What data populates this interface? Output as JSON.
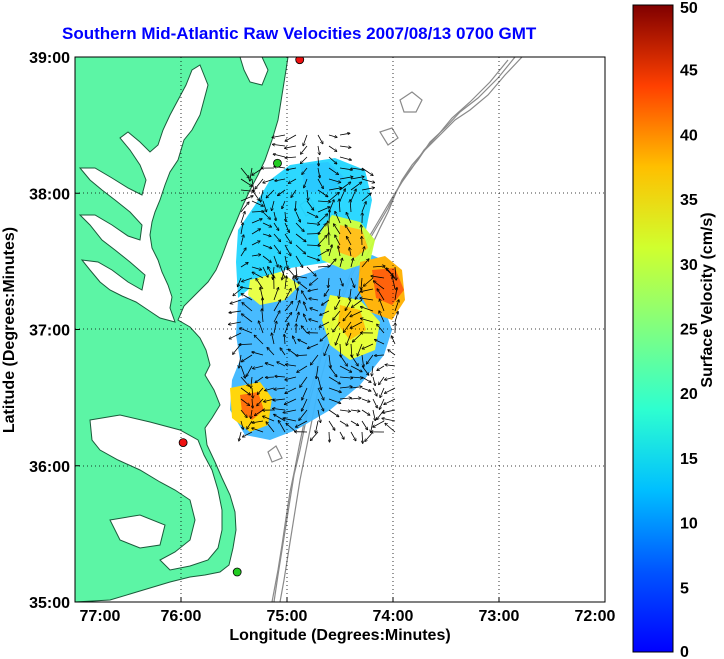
{
  "title": "Southern Mid-Atlantic Raw Velocities 2007/08/13 0700 GMT",
  "x_axis": {
    "label": "Longitude (Degrees:Minutes)",
    "ticks": [
      "77:00",
      "76:00",
      "75:00",
      "74:00",
      "73:00",
      "72:00"
    ]
  },
  "y_axis": {
    "label": "Latitude (Degrees:Minutes)",
    "ticks": [
      "39:00",
      "38:00",
      "37:00",
      "36:00",
      "35:00"
    ]
  },
  "colorbar": {
    "label": "Surface Velocity (cm/s)",
    "ticks": [
      "50",
      "45",
      "40",
      "35",
      "30",
      "25",
      "20",
      "15",
      "10",
      "5",
      "0"
    ],
    "range": [
      0,
      50
    ],
    "colormap": "jet"
  },
  "colors": {
    "land": "#5cf5a5",
    "title": "#0000ff",
    "bathymetry": "#8a8a8a",
    "station_green": "#22cc22",
    "station_red": "#ee1111"
  },
  "chart_data": {
    "type": "vector-field map",
    "xlim_deg_west": [
      77,
      72
    ],
    "ylim_deg_north": [
      35,
      39
    ],
    "grid": true,
    "stations": [
      {
        "lon": 74.88,
        "lat": 38.98,
        "color": "red"
      },
      {
        "lon": 75.09,
        "lat": 38.22,
        "color": "green"
      },
      {
        "lon": 75.98,
        "lat": 36.17,
        "color": "red"
      },
      {
        "lon": 75.47,
        "lat": 35.22,
        "color": "green"
      }
    ]
  }
}
